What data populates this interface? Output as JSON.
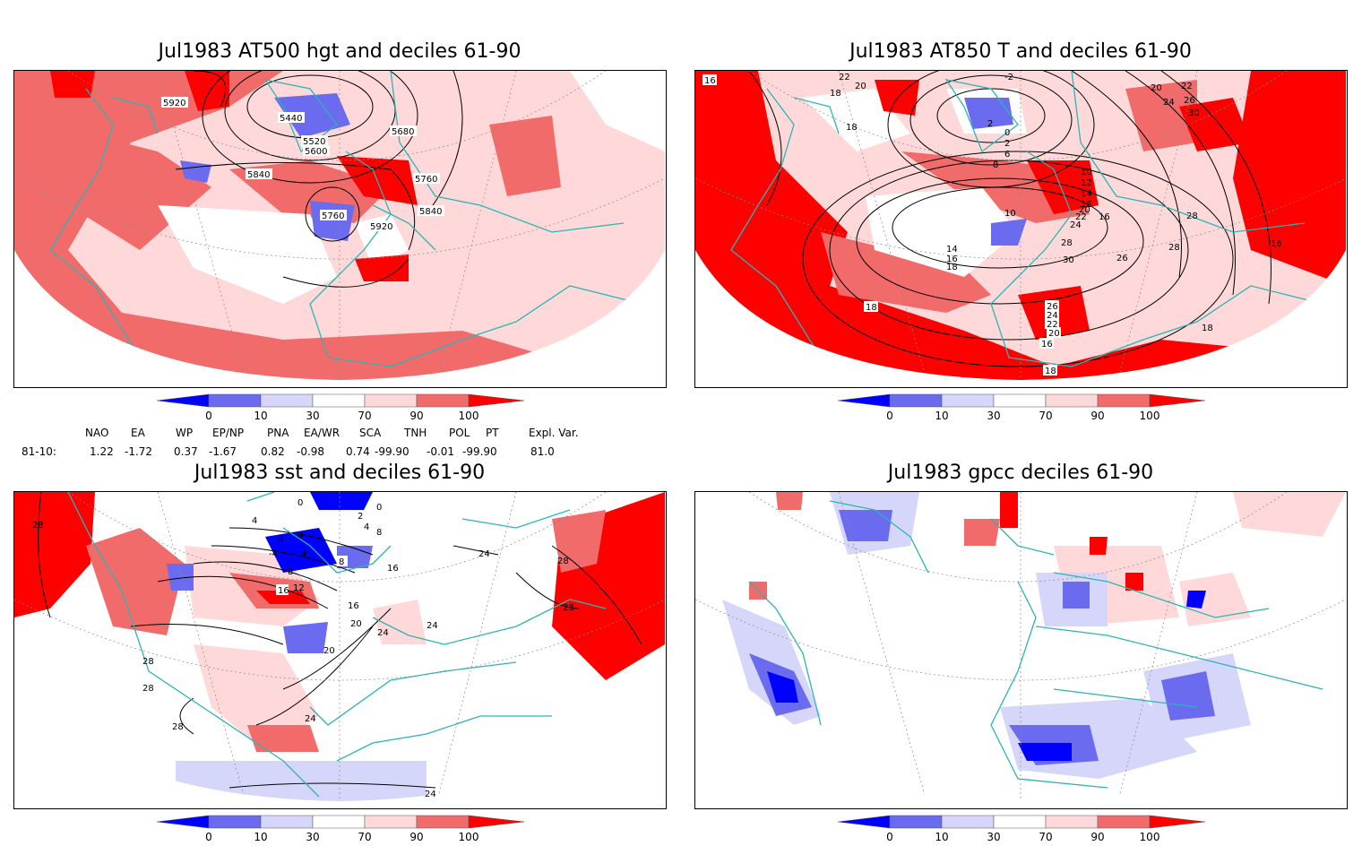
{
  "panels": [
    {
      "title": "Jul1983 AT500 hgt and deciles 61-90",
      "contour_labels": [
        "5920",
        "5440",
        "5520",
        "5600",
        "5680",
        "5840",
        "5760",
        "5760",
        "5920",
        "5840"
      ]
    },
    {
      "title": "Jul1983 AT850 T and deciles 61-90",
      "contour_labels": [
        "16",
        "22",
        "20",
        "18",
        "18",
        "2",
        "0",
        "2",
        "6",
        "8",
        "10",
        "12",
        "14",
        "16",
        "20",
        "22",
        "24",
        "22",
        "20",
        "24",
        "26",
        "30",
        "28",
        "16",
        "28",
        "14",
        "16",
        "18",
        "10",
        "30",
        "26",
        "28",
        "16",
        "26",
        "24",
        "22",
        "20",
        "18",
        "16",
        "18",
        "18",
        "-2"
      ]
    },
    {
      "title": "Jul1983 sst and deciles 61-90",
      "contour_labels": [
        "28",
        "0",
        "4",
        "4",
        "0",
        "-4",
        "4",
        "8",
        "8",
        "0",
        "2",
        "4",
        "8",
        "16",
        "12",
        "16",
        "20",
        "16",
        "24",
        "24",
        "20",
        "24",
        "28",
        "28",
        "28",
        "28",
        "24",
        "24",
        "28"
      ]
    },
    {
      "title": "Jul1983 gpcc deciles 61-90",
      "contour_labels": []
    }
  ],
  "colorbar": {
    "ticks": [
      "0",
      "10",
      "30",
      "70",
      "90",
      "100"
    ],
    "colors": [
      "#0000ff",
      "#6b6bf0",
      "#d6d6fa",
      "#ffffff",
      "#ffd9d9",
      "#f26b6b",
      "#ff0000"
    ]
  },
  "indices": {
    "headers": [
      "NAO",
      "EA",
      "WP",
      "EP/NP",
      "PNA",
      "EA/WR",
      "SCA",
      "TNH",
      "POL",
      "PT",
      "Expl. Var."
    ],
    "row_label": "81-10:",
    "values": [
      "1.22",
      "-1.72",
      "0.37",
      "-1.67",
      "0.82",
      "-0.98",
      "0.74",
      "-99.90",
      "-0.01",
      "-99.90",
      "81.0"
    ]
  },
  "colors": {
    "coast": "#2ab5b5",
    "contour": "#000000",
    "grid": "#8a8a8a"
  }
}
